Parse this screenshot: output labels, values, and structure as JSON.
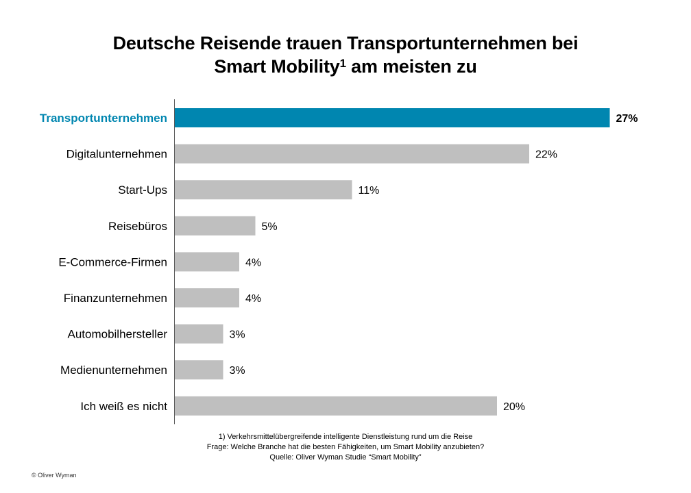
{
  "title_line1": "Deutsche Reisende trauen Transportunternehmen bei",
  "title_line2_main": "Smart Mobility",
  "title_line2_sup": "1",
  "title_line2_rest": " am meisten zu",
  "colors": {
    "highlight": "#0086b0",
    "bar": "#bfbfbf",
    "axis": "#595959"
  },
  "chart_data": {
    "type": "bar",
    "orientation": "horizontal",
    "title": "Deutsche Reisende trauen Transportunternehmen bei Smart Mobility¹ am meisten zu",
    "xlabel": "",
    "ylabel": "",
    "unit": "%",
    "xlim": [
      0,
      27
    ],
    "grid": false,
    "legend": "none",
    "highlight_index": 0,
    "categories": [
      "Transportunternehmen",
      "Digitalunternehmen",
      "Start-Ups",
      "Reisebüros",
      "E-Commerce-Firmen",
      "Finanzunternehmen",
      "Automobilhersteller",
      "Medienunternehmen",
      "Ich weiß es nicht"
    ],
    "values": [
      27,
      22,
      11,
      5,
      4,
      4,
      3,
      3,
      20
    ],
    "data_labels": [
      "27%",
      "22%",
      "11%",
      "5%",
      "4%",
      "4%",
      "3%",
      "3%",
      "20%"
    ]
  },
  "footnotes": {
    "note1": "1) Verkehrsmittelübergreifende  intelligente Dienstleistung rund um die Reise",
    "question": "Frage:  Welche Branche hat die besten Fähigkeiten, um Smart Mobility anzubieten?",
    "source": "Quelle: Oliver Wyman Studie “Smart Mobility”"
  },
  "copyright": "© Oliver Wyman"
}
